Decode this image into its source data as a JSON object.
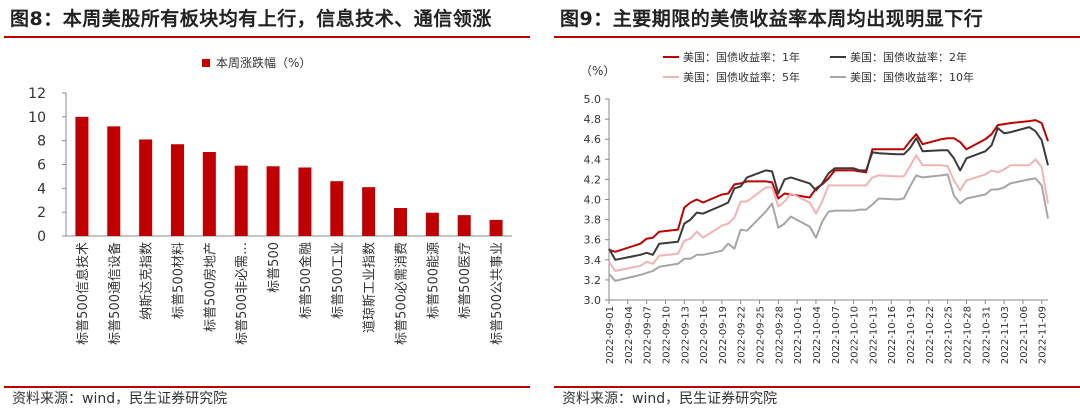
{
  "figures": [
    {
      "title": "图8：本周美股所有板块均有上行，信息技术、通信领涨",
      "source": "资料来源：wind，民生证券研究院",
      "chart_data": {
        "type": "bar",
        "title": "",
        "xlabel": "",
        "ylabel": "",
        "ylim": [
          0,
          12
        ],
        "yticks": [
          0,
          2,
          4,
          6,
          8,
          10,
          12
        ],
        "grid": false,
        "legend_position": "top",
        "series": [
          {
            "name": "本周涨跌幅（%）",
            "color": "#c00000",
            "values": [
              10.0,
              9.2,
              8.1,
              7.7,
              7.05,
              5.9,
              5.85,
              5.75,
              4.6,
              4.1,
              2.35,
              1.95,
              1.75,
              1.35
            ]
          }
        ],
        "categories": [
          "标普500信息技术",
          "标普500通信设备",
          "纳斯达克指数",
          "标普500材料",
          "标普500房地产",
          "标普500非必需…",
          "标普500",
          "标普500金融",
          "标普500工业",
          "道琼斯工业指数",
          "标普500必需消费",
          "标普500能源",
          "标普500医疗",
          "标普500公共事业"
        ]
      }
    },
    {
      "title": "图9：主要期限的美债收益率本周均出现明显下行",
      "source": "资料来源：wind，民生证券研究院",
      "chart_data": {
        "type": "line",
        "title": "",
        "xlabel": "",
        "ylabel": "（%）",
        "ylim": [
          3.0,
          5.0
        ],
        "yticks": [
          3.0,
          3.2,
          3.4,
          3.6,
          3.8,
          4.0,
          4.2,
          4.4,
          4.6,
          4.8,
          5.0
        ],
        "grid": false,
        "legend_position": "top",
        "x": [
          "2022-09-01",
          "2022-09-02",
          "2022-09-06",
          "2022-09-07",
          "2022-09-08",
          "2022-09-09",
          "2022-09-12",
          "2022-09-13",
          "2022-09-14",
          "2022-09-15",
          "2022-09-16",
          "2022-09-19",
          "2022-09-20",
          "2022-09-21",
          "2022-09-22",
          "2022-09-23",
          "2022-09-26",
          "2022-09-27",
          "2022-09-28",
          "2022-09-29",
          "2022-09-30",
          "2022-10-03",
          "2022-10-04",
          "2022-10-05",
          "2022-10-06",
          "2022-10-07",
          "2022-10-10",
          "2022-10-11",
          "2022-10-12",
          "2022-10-13",
          "2022-10-14",
          "2022-10-17",
          "2022-10-18",
          "2022-10-19",
          "2022-10-20",
          "2022-10-21",
          "2022-10-24",
          "2022-10-25",
          "2022-10-26",
          "2022-10-27",
          "2022-10-28",
          "2022-10-31",
          "2022-11-01",
          "2022-11-02",
          "2022-11-03",
          "2022-11-04",
          "2022-11-07",
          "2022-11-08",
          "2022-11-09",
          "2022-11-10"
        ],
        "xtick_labels": [
          "2022-09-01",
          "2022-09-04",
          "2022-09-07",
          "2022-09-10",
          "2022-09-13",
          "2022-09-16",
          "2022-09-19",
          "2022-09-22",
          "2022-09-25",
          "2022-09-28",
          "2022-10-01",
          "2022-10-04",
          "2022-10-07",
          "2022-10-10",
          "2022-10-13",
          "2022-10-16",
          "2022-10-19",
          "2022-10-22",
          "2022-10-25",
          "2022-10-28",
          "2022-10-31",
          "2022-11-03",
          "2022-11-06",
          "2022-11-09"
        ],
        "series": [
          {
            "name": "美国：国债收益率：1年",
            "color": "#c00000",
            "values": [
              3.5,
              3.48,
              3.56,
              3.61,
              3.62,
              3.68,
              3.7,
              3.92,
              3.97,
              4.0,
              3.97,
              4.05,
              4.06,
              4.15,
              4.16,
              4.18,
              4.18,
              4.17,
              4.01,
              4.06,
              4.05,
              4.02,
              4.11,
              4.15,
              4.21,
              4.29,
              4.29,
              4.28,
              4.27,
              4.5,
              4.5,
              4.5,
              4.5,
              4.58,
              4.65,
              4.55,
              4.6,
              4.61,
              4.61,
              4.57,
              4.5,
              4.6,
              4.65,
              4.74,
              4.75,
              4.76,
              4.78,
              4.79,
              4.76,
              4.58
            ]
          },
          {
            "name": "美国：国债收益率：2年",
            "color": "#3a3a3a",
            "values": [
              3.51,
              3.4,
              3.45,
              3.47,
              3.45,
              3.56,
              3.58,
              3.76,
              3.8,
              3.87,
              3.86,
              3.94,
              3.97,
              4.11,
              4.13,
              4.22,
              4.29,
              4.28,
              4.06,
              4.2,
              4.22,
              4.16,
              4.09,
              4.16,
              4.26,
              4.31,
              4.31,
              4.29,
              4.29,
              4.47,
              4.46,
              4.45,
              4.45,
              4.51,
              4.61,
              4.48,
              4.49,
              4.49,
              4.41,
              4.29,
              4.41,
              4.48,
              4.54,
              4.71,
              4.66,
              4.67,
              4.72,
              4.68,
              4.59,
              4.34
            ]
          },
          {
            "name": "美国：国债收益率：5年",
            "color": "#f2b3b3",
            "values": [
              3.38,
              3.29,
              3.34,
              3.38,
              3.36,
              3.44,
              3.46,
              3.59,
              3.61,
              3.68,
              3.62,
              3.74,
              3.76,
              3.82,
              3.98,
              3.98,
              4.12,
              4.12,
              3.93,
              3.98,
              4.06,
              3.97,
              3.86,
              3.98,
              4.14,
              4.14,
              4.14,
              4.14,
              4.14,
              4.22,
              4.24,
              4.23,
              4.23,
              4.33,
              4.44,
              4.34,
              4.34,
              4.33,
              4.19,
              4.09,
              4.19,
              4.25,
              4.29,
              4.27,
              4.3,
              4.34,
              4.34,
              4.4,
              4.32,
              3.96
            ]
          },
          {
            "name": "美国：国债收益率：10年",
            "color": "#a6a6a6",
            "values": [
              3.26,
              3.19,
              3.25,
              3.27,
              3.29,
              3.33,
              3.36,
              3.41,
              3.41,
              3.45,
              3.45,
              3.49,
              3.56,
              3.51,
              3.7,
              3.69,
              3.88,
              3.96,
              3.72,
              3.76,
              3.83,
              3.73,
              3.62,
              3.78,
              3.88,
              3.89,
              3.89,
              3.9,
              3.9,
              3.95,
              4.01,
              4.0,
              4.01,
              4.13,
              4.24,
              4.22,
              4.24,
              4.25,
              4.04,
              3.96,
              4.01,
              4.05,
              4.1,
              4.1,
              4.12,
              4.16,
              4.2,
              4.21,
              4.14,
              3.81
            ]
          }
        ]
      }
    }
  ]
}
